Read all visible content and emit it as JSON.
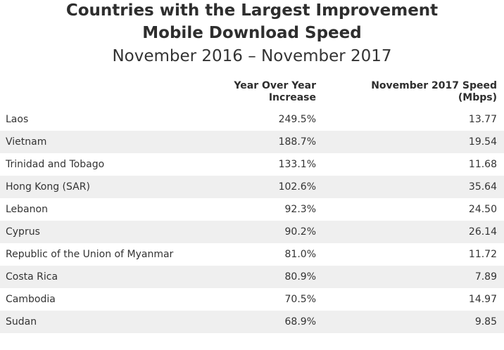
{
  "title_line1": "Countries with the Largest Improvement",
  "title_line2": "Mobile Download Speed",
  "subtitle": "November 2016 – November 2017",
  "headers": {
    "country": "",
    "increase_line1": "Year Over Year",
    "increase_line2": "Increase",
    "speed_line1": "November 2017 Speed",
    "speed_line2": "(Mbps)"
  },
  "chart_data": {
    "type": "table",
    "title": "Countries with the Largest Improvement Mobile Download Speed",
    "subtitle": "November 2016 – November 2017",
    "columns": [
      "",
      "Year Over Year Increase",
      "November 2017 Speed (Mbps)"
    ],
    "rows": [
      {
        "country": "Laos",
        "increase": "249.5%",
        "speed": "13.77"
      },
      {
        "country": "Vietnam",
        "increase": "188.7%",
        "speed": "19.54"
      },
      {
        "country": "Trinidad and Tobago",
        "increase": "133.1%",
        "speed": "11.68"
      },
      {
        "country": "Hong Kong (SAR)",
        "increase": "102.6%",
        "speed": "35.64"
      },
      {
        "country": "Lebanon",
        "increase": "92.3%",
        "speed": "24.50"
      },
      {
        "country": "Cyprus",
        "increase": "90.2%",
        "speed": "26.14"
      },
      {
        "country": "Republic of the Union of Myanmar",
        "increase": "81.0%",
        "speed": "11.72"
      },
      {
        "country": "Costa Rica",
        "increase": "80.9%",
        "speed": "7.89"
      },
      {
        "country": "Cambodia",
        "increase": "70.5%",
        "speed": "14.97"
      },
      {
        "country": "Sudan",
        "increase": "68.9%",
        "speed": "9.85"
      }
    ]
  }
}
